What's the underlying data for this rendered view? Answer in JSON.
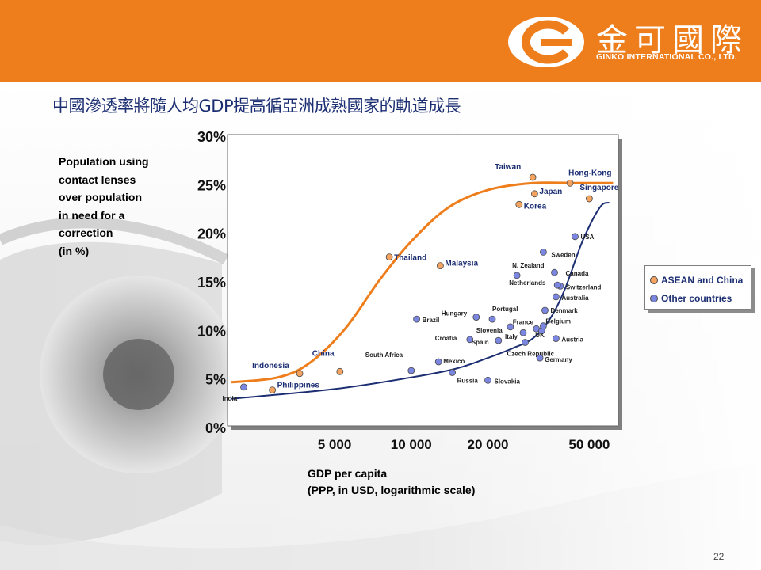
{
  "header": {
    "company_cn": "金可國際",
    "company_en": "GINKO INTERNATIONAL CO., LTD."
  },
  "title": "中國滲透率將隨人均GDP提高循亞洲成熟國家的軌道成長",
  "ylabel_lines": [
    "Population using",
    "contact lenses",
    "over population",
    "in need for a",
    "correction",
    "(in %)"
  ],
  "xlabel_lines": [
    "GDP per capita",
    "(PPP, in USD, logarithmic scale)"
  ],
  "legend": [
    {
      "label": "ASEAN and China",
      "color": "#f4a460"
    },
    {
      "label": "Other countries",
      "color": "#7b86e0"
    }
  ],
  "page_number": "22",
  "chart_data": {
    "type": "scatter",
    "x_scale": "log",
    "x_ticks": [
      5000,
      10000,
      20000,
      50000
    ],
    "x_tick_labels": [
      "5 000",
      "10 000",
      "20 000",
      "50 000"
    ],
    "xlim": [
      1900,
      65000
    ],
    "ylim": [
      0,
      30
    ],
    "y_ticks": [
      0,
      5,
      10,
      15,
      20,
      25,
      30
    ],
    "y_tick_labels": [
      "0%",
      "5%",
      "10%",
      "15%",
      "20%",
      "25%",
      "30%"
    ],
    "series": [
      {
        "name": "ASEAN and China",
        "color": "#f4a460",
        "curve_color": "#ee7d1c",
        "curve": [
          [
            1970,
            4.5
          ],
          [
            3000,
            5.0
          ],
          [
            4000,
            6.5
          ],
          [
            5500,
            10.0
          ],
          [
            7500,
            15.0
          ],
          [
            10000,
            19.0
          ],
          [
            14000,
            22.5
          ],
          [
            20000,
            24.3
          ],
          [
            30000,
            25.0
          ],
          [
            45000,
            25.0
          ],
          [
            62000,
            25.0
          ]
        ],
        "points": [
          {
            "label": "Indonesia",
            "x": 3650,
            "y": 5.4
          },
          {
            "label": "Philippines",
            "x": 2850,
            "y": 3.7
          },
          {
            "label": "China",
            "x": 5250,
            "y": 5.6
          },
          {
            "label": "Thailand",
            "x": 8200,
            "y": 17.4
          },
          {
            "label": "Malaysia",
            "x": 13000,
            "y": 16.5
          },
          {
            "label": "Taiwan",
            "x": 30000,
            "y": 25.6
          },
          {
            "label": "Japan",
            "x": 30500,
            "y": 23.9
          },
          {
            "label": "Korea",
            "x": 26500,
            "y": 22.8
          },
          {
            "label": "Hong-Kong",
            "x": 42000,
            "y": 25.0
          },
          {
            "label": "Singapore",
            "x": 50000,
            "y": 23.4
          }
        ]
      },
      {
        "name": "Other countries",
        "color": "#7b86e0",
        "curve_color": "#1c2e72",
        "curve": [
          [
            1970,
            2.8
          ],
          [
            5000,
            3.8
          ],
          [
            10000,
            5.0
          ],
          [
            15000,
            5.9
          ],
          [
            20000,
            7.0
          ],
          [
            25000,
            8.0
          ],
          [
            30000,
            9.0
          ],
          [
            35000,
            11.0
          ],
          [
            40000,
            14.0
          ],
          [
            47000,
            19.0
          ],
          [
            55000,
            22.5
          ],
          [
            60000,
            23.0
          ]
        ],
        "points": [
          {
            "label": "India",
            "x": 2200,
            "y": 4.0
          },
          {
            "label": "South Africa",
            "x": 10000,
            "y": 5.7
          },
          {
            "label": "Brazil",
            "x": 10500,
            "y": 11.0
          },
          {
            "label": "Mexico",
            "x": 12800,
            "y": 6.6
          },
          {
            "label": "Russia",
            "x": 14500,
            "y": 5.5
          },
          {
            "label": "Slovakia",
            "x": 20000,
            "y": 4.7
          },
          {
            "label": "Croatia",
            "x": 17000,
            "y": 8.9
          },
          {
            "label": "Hungary",
            "x": 18000,
            "y": 11.2
          },
          {
            "label": "Spain",
            "x": 22000,
            "y": 8.8
          },
          {
            "label": "Portugal",
            "x": 20800,
            "y": 11.0
          },
          {
            "label": "Slovenia",
            "x": 24500,
            "y": 10.2
          },
          {
            "label": "France",
            "x": 31000,
            "y": 10.0
          },
          {
            "label": "Italy",
            "x": 27500,
            "y": 9.6
          },
          {
            "label": "UK",
            "x": 32500,
            "y": 9.8
          },
          {
            "label": "Czech Republic",
            "x": 28000,
            "y": 8.6
          },
          {
            "label": "Germany",
            "x": 32000,
            "y": 7.0
          },
          {
            "label": "Austria",
            "x": 37000,
            "y": 9.0
          },
          {
            "label": "Belgium",
            "x": 33000,
            "y": 10.3
          },
          {
            "label": "Denmark",
            "x": 33500,
            "y": 11.9
          },
          {
            "label": "Australia",
            "x": 37000,
            "y": 13.3
          },
          {
            "label": "Switzerland",
            "x": 38500,
            "y": 14.4
          },
          {
            "label": "Netherlands",
            "x": 37500,
            "y": 14.5
          },
          {
            "label": "Canada",
            "x": 36500,
            "y": 15.8
          },
          {
            "label": "N. Zealand",
            "x": 26000,
            "y": 15.5
          },
          {
            "label": "Sweden",
            "x": 33000,
            "y": 17.9
          },
          {
            "label": "USA",
            "x": 44000,
            "y": 19.5
          }
        ]
      }
    ]
  }
}
